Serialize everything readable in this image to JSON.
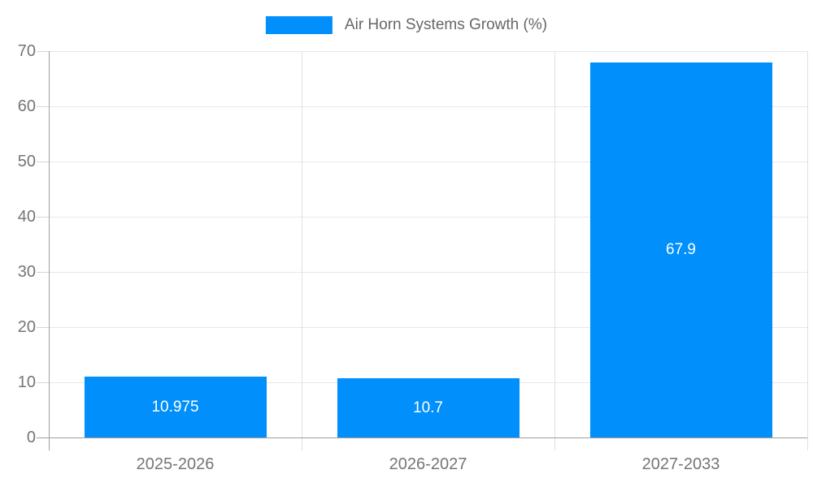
{
  "chart_data": {
    "type": "bar",
    "title": "Air Horn Systems Growth (%)",
    "legend": {
      "position": "top",
      "label": "Air Horn Systems Growth (%)",
      "swatch_color": "#008FFB"
    },
    "categories": [
      "2025-2026",
      "2026-2027",
      "2027-2033"
    ],
    "values": [
      10.975,
      10.7,
      67.9
    ],
    "value_labels": [
      "10.975",
      "10.7",
      "67.9"
    ],
    "xlabel": "",
    "ylabel": "",
    "ylim": [
      0,
      70
    ],
    "y_ticks": [
      0,
      10,
      20,
      30,
      40,
      50,
      60,
      70
    ],
    "grid": true,
    "colors": {
      "bar": "#008FFB",
      "axis": "#9e9e9e",
      "gridline": "#e8e8e8",
      "separator": "#e0e0e0",
      "tick": "#d6d6d6",
      "axis_label": "#757575",
      "value_label": "#ffffff",
      "legend_text": "#666666"
    }
  }
}
